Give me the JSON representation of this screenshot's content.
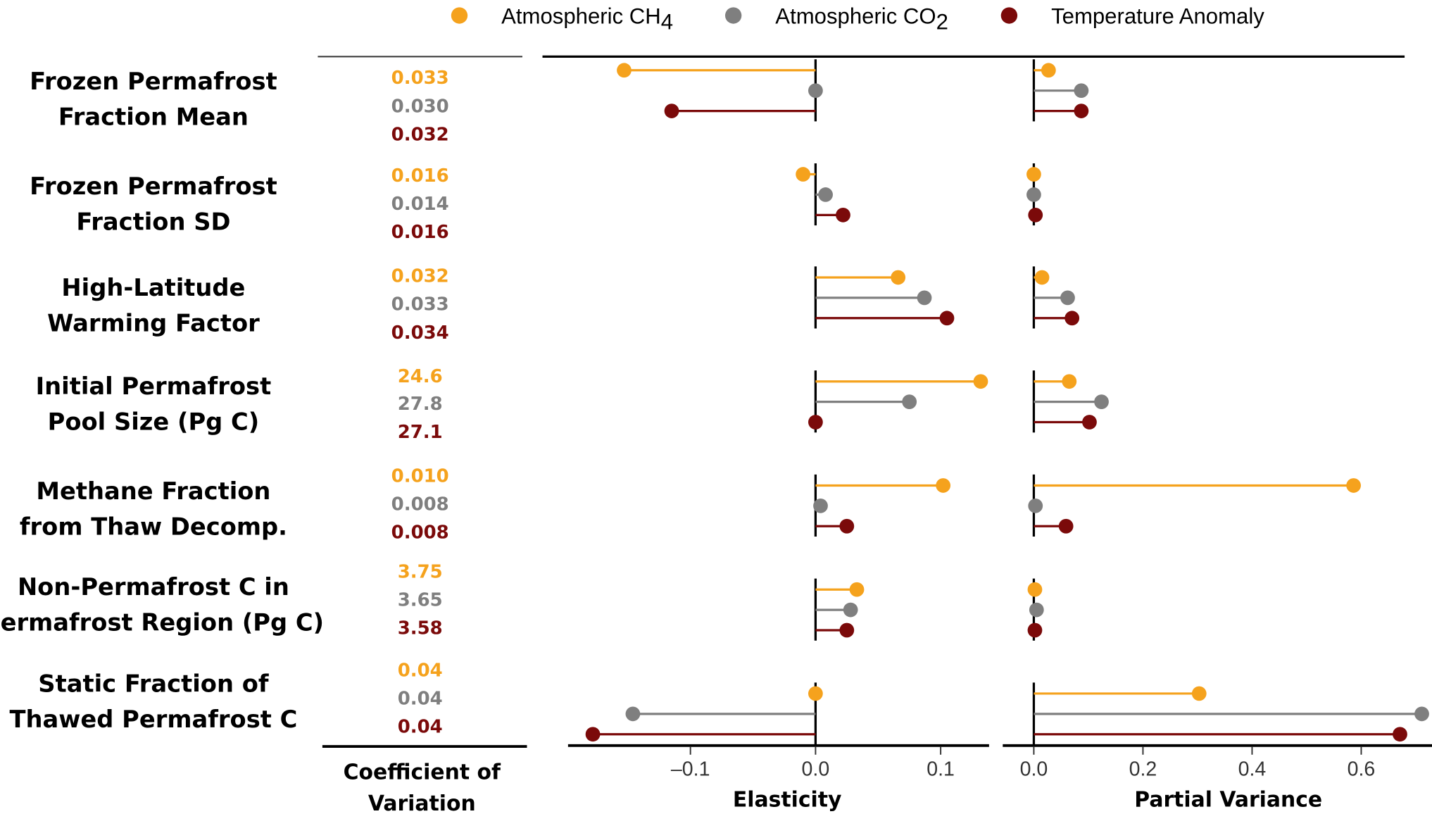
{
  "chart_data": {
    "type": "lollipop",
    "legend": {
      "placement": "top",
      "entries": [
        {
          "key": "ch4",
          "name": "Atmospheric CH",
          "sub": "4",
          "color": "#F5A21D"
        },
        {
          "key": "co2",
          "name": "Atmospheric CO",
          "sub": "2",
          "color": "#7F7F7F"
        },
        {
          "key": "temp",
          "name": "Temperature Anomaly",
          "sub": "",
          "color": "#7B0A0A"
        }
      ]
    },
    "parameters": [
      {
        "label": [
          "Frozen Permafrost",
          "Fraction Mean"
        ],
        "cv": [
          "0.033",
          "0.030",
          "0.032"
        ],
        "elasticity": [
          -0.153,
          0.0,
          -0.115
        ],
        "partial_variance": [
          0.027,
          0.087,
          0.087
        ]
      },
      {
        "label": [
          "Frozen Permafrost",
          "Fraction SD"
        ],
        "cv": [
          "0.016",
          "0.014",
          "0.016"
        ],
        "elasticity": [
          -0.01,
          0.008,
          0.022
        ],
        "partial_variance": [
          0.0,
          0.0,
          0.003
        ]
      },
      {
        "label": [
          "High-Latitude",
          "Warming Factor"
        ],
        "cv": [
          "0.032",
          "0.033",
          "0.034"
        ],
        "elasticity": [
          0.066,
          0.087,
          0.105
        ],
        "partial_variance": [
          0.015,
          0.062,
          0.07
        ]
      },
      {
        "label": [
          "Initial Permafrost",
          "Pool Size (Pg C)"
        ],
        "cv": [
          "24.6",
          "27.8",
          "27.1"
        ],
        "elasticity": [
          0.132,
          0.075,
          0.0
        ],
        "partial_variance": [
          0.065,
          0.124,
          0.102
        ]
      },
      {
        "label": [
          "Methane Fraction",
          "from Thaw Decomp."
        ],
        "cv": [
          "0.010",
          "0.008",
          "0.008"
        ],
        "elasticity": [
          0.102,
          0.004,
          0.025
        ],
        "partial_variance": [
          0.586,
          0.003,
          0.059
        ]
      },
      {
        "label": [
          "Non-Permafrost C in",
          "Permafrost Region (Pg C)"
        ],
        "cv": [
          "3.75",
          "3.65",
          "3.58"
        ],
        "elasticity": [
          0.033,
          0.028,
          0.025
        ],
        "partial_variance": [
          0.002,
          0.005,
          0.002
        ]
      },
      {
        "label": [
          "Static Fraction of",
          "Thawed Permafrost C"
        ],
        "cv": [
          "0.04",
          "0.04",
          "0.04"
        ],
        "elasticity": [
          0.0,
          -0.146,
          -0.178
        ],
        "partial_variance": [
          0.303,
          0.711,
          0.671
        ]
      }
    ],
    "cv_title": [
      "Coefficient of",
      "Variation"
    ],
    "elasticity_axis": {
      "title": "Elasticity",
      "ticks": [
        -0.1,
        0.0,
        0.1
      ],
      "tick_labels": [
        "–0.1",
        "0.0",
        "0.1"
      ],
      "xlim": [
        -0.198,
        0.139
      ]
    },
    "partial_variance_axis": {
      "title": "Partial Variance",
      "ticks": [
        0.0,
        0.2,
        0.4,
        0.6
      ],
      "tick_labels": [
        "0.0",
        "0.2",
        "0.4",
        "0.6"
      ],
      "xlim": [
        -0.02,
        0.73
      ]
    },
    "grid": false
  }
}
